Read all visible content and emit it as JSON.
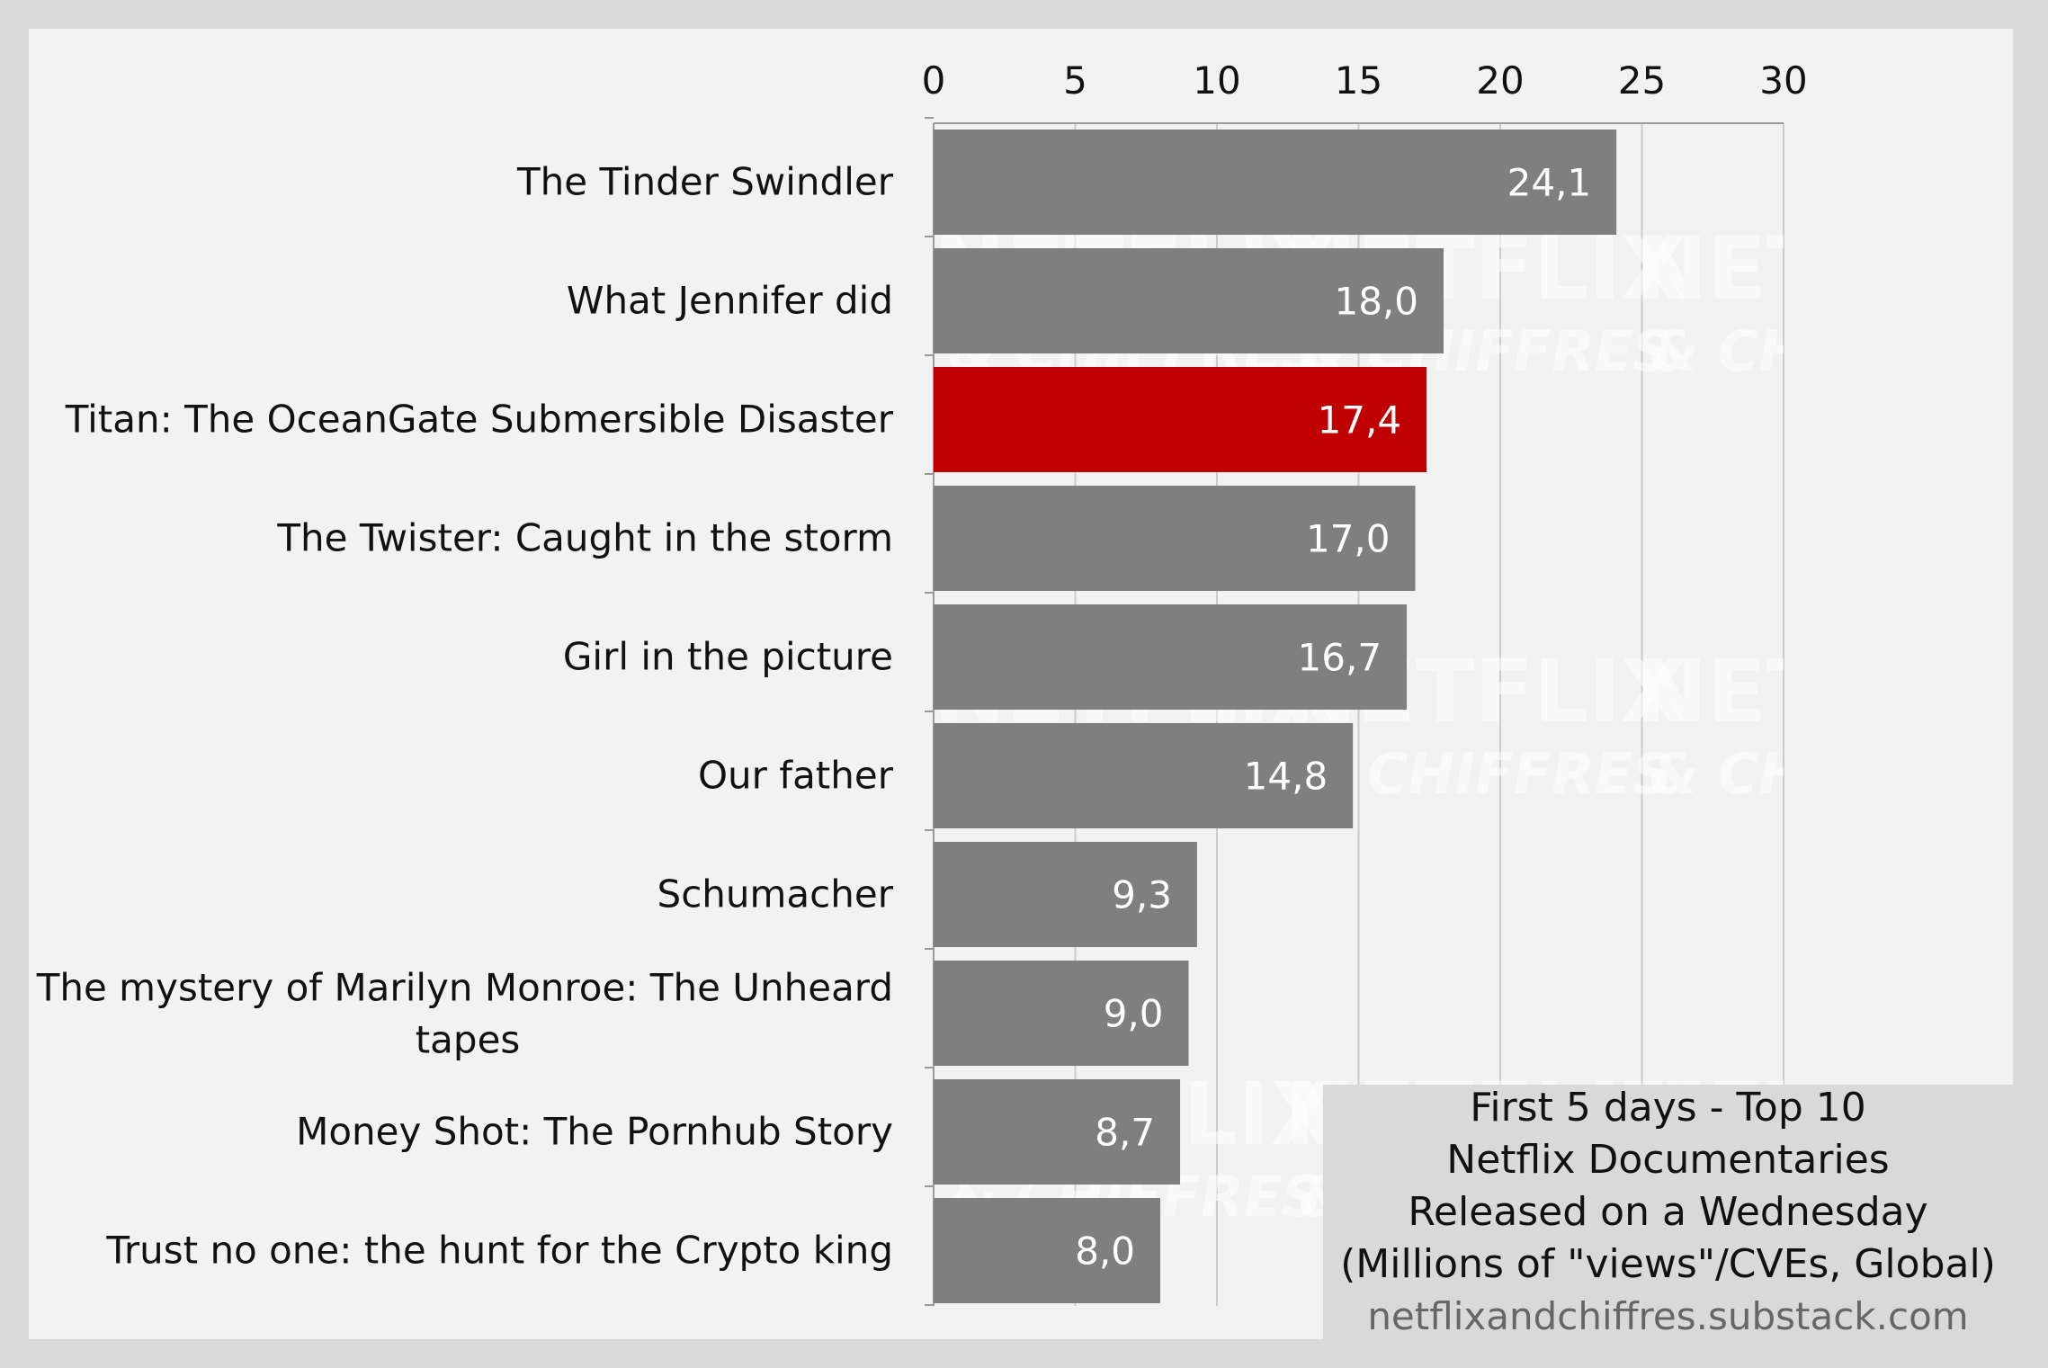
{
  "chart_data": {
    "type": "bar",
    "orientation": "horizontal",
    "categories": [
      "The Tinder Swindler",
      "What Jennifer did",
      "Titan: The OceanGate Submersible Disaster",
      "The Twister: Caught in the storm",
      "Girl in the picture",
      "Our father",
      "Schumacher",
      "The mystery of Marilyn Monroe: The Unheard tapes",
      "Money Shot: The Pornhub Story",
      "Trust no one: the hunt for the Crypto king"
    ],
    "values": [
      24.1,
      18.0,
      17.4,
      17.0,
      16.7,
      14.8,
      9.3,
      9.0,
      8.7,
      8.0
    ],
    "value_labels": [
      "24,1",
      "18,0",
      "17,4",
      "17,0",
      "16,7",
      "14,8",
      "9,3",
      "9,0",
      "8,7",
      "8,0"
    ],
    "highlight_index": 2,
    "xlim": [
      0,
      30
    ],
    "x_ticks": [
      0,
      5,
      10,
      15,
      20,
      25,
      30
    ],
    "x_axis_position": "top",
    "grid": true,
    "legend": "none",
    "colors": {
      "bar": "#7f7f7f",
      "highlight": "#c00000"
    },
    "title": "",
    "xlabel": "",
    "ylabel": ""
  },
  "info_box": {
    "lines": [
      "First 5 days - Top 10",
      "Netflix Documentaries",
      "Released on a Wednesday",
      "(Millions of \"views\"/CVEs, Global)"
    ],
    "source": "netflixandchiffres.substack.com"
  },
  "watermark": {
    "primary": "NETFLIX",
    "secondary": "& CHIFFRES"
  }
}
